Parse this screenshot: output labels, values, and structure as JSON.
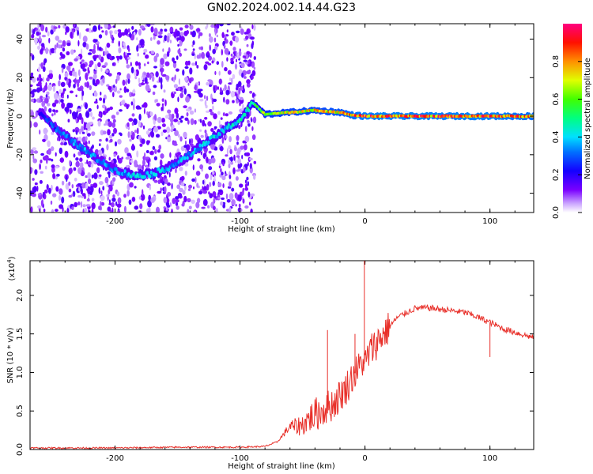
{
  "title": "GN02.2024.002.14.44.G23",
  "colors": {
    "snr_line": "#e8302a",
    "ridge": "#ff2020",
    "axis": "#000000"
  },
  "chart_data": [
    {
      "type": "heatmap",
      "xlabel": "Height of straight line (km)",
      "ylabel": "Frequency (Hz)",
      "xlim": [
        -268,
        135
      ],
      "ylim": [
        -50,
        48
      ],
      "x_ticks": [
        -200,
        -100,
        0,
        100
      ],
      "x_tick_labels": [
        "-200",
        "-100",
        "0",
        "100"
      ],
      "y_ticks": [
        -40,
        -20,
        0,
        20,
        40
      ],
      "y_tick_labels": [
        "-40",
        "-20",
        "0",
        "20",
        "40"
      ],
      "colorbar": {
        "label": "Normalized spectral amplitude",
        "range": [
          0,
          1
        ],
        "ticks": [
          0.0,
          0.2,
          0.4,
          0.6,
          0.8
        ],
        "tick_labels": [
          "0.0",
          "0.2",
          "0.4",
          "0.6",
          "0.8"
        ]
      },
      "ridge": {
        "x": [
          -260,
          -245,
          -230,
          -215,
          -200,
          -185,
          -170,
          -155,
          -140,
          -125,
          -110,
          -100,
          -95,
          -90,
          -85,
          -80,
          -60,
          -40,
          -20,
          -10,
          0,
          50,
          100,
          135
        ],
        "y": [
          2,
          -8,
          -15,
          -22,
          -28,
          -31,
          -30,
          -26,
          -20,
          -13,
          -6,
          -2,
          2,
          7,
          4,
          1,
          2,
          3,
          2,
          0.5,
          0,
          0,
          0,
          0
        ],
        "amplitude": [
          0.25,
          0.35,
          0.4,
          0.4,
          0.35,
          0.45,
          0.45,
          0.4,
          0.4,
          0.45,
          0.45,
          0.5,
          0.5,
          0.55,
          0.6,
          0.75,
          0.8,
          0.8,
          0.85,
          0.9,
          0.95,
          0.95,
          0.95,
          0.9
        ]
      }
    },
    {
      "type": "line",
      "xlabel": "Height of straight line (km)",
      "ylabel": "SNR (10 * v/v)",
      "y_multiplier": "(x10",
      "y_multiplier_exp": "4",
      "y_multiplier_close": ")",
      "xlim": [
        -268,
        135
      ],
      "ylim": [
        0,
        2.45
      ],
      "x_ticks": [
        -200,
        -100,
        0,
        100
      ],
      "x_tick_labels": [
        "-200",
        "-100",
        "0",
        "100"
      ],
      "y_ticks": [
        0.0,
        0.5,
        1.0,
        1.5,
        2.0
      ],
      "y_tick_labels": [
        "0.0",
        "0.5",
        "1.0",
        "1.5",
        "2.0"
      ],
      "series": [
        {
          "x": [
            -268,
            -200,
            -150,
            -100,
            -80,
            -70,
            -65,
            -60,
            -55,
            -50,
            -45,
            -40,
            -35,
            -30,
            -25,
            -20,
            -15,
            -10,
            -5,
            -2,
            0,
            2,
            5,
            10,
            15,
            20,
            25,
            30,
            40,
            50,
            60,
            70,
            80,
            90,
            100,
            110,
            120,
            135
          ],
          "values": [
            0.02,
            0.02,
            0.03,
            0.03,
            0.04,
            0.1,
            0.2,
            0.3,
            0.3,
            0.32,
            0.4,
            0.45,
            0.5,
            0.55,
            0.6,
            0.7,
            0.8,
            0.95,
            1.05,
            1.15,
            1.1,
            1.2,
            1.3,
            1.4,
            1.5,
            1.6,
            1.7,
            1.75,
            1.83,
            1.84,
            1.82,
            1.8,
            1.78,
            1.72,
            1.65,
            1.57,
            1.52,
            1.45
          ]
        }
      ],
      "spikes": [
        {
          "x": -0.5,
          "y": 2.45
        },
        {
          "x": -30,
          "y": 1.55
        },
        {
          "x": -8,
          "y": 1.5
        },
        {
          "x": 100,
          "y": 1.2
        }
      ]
    }
  ]
}
